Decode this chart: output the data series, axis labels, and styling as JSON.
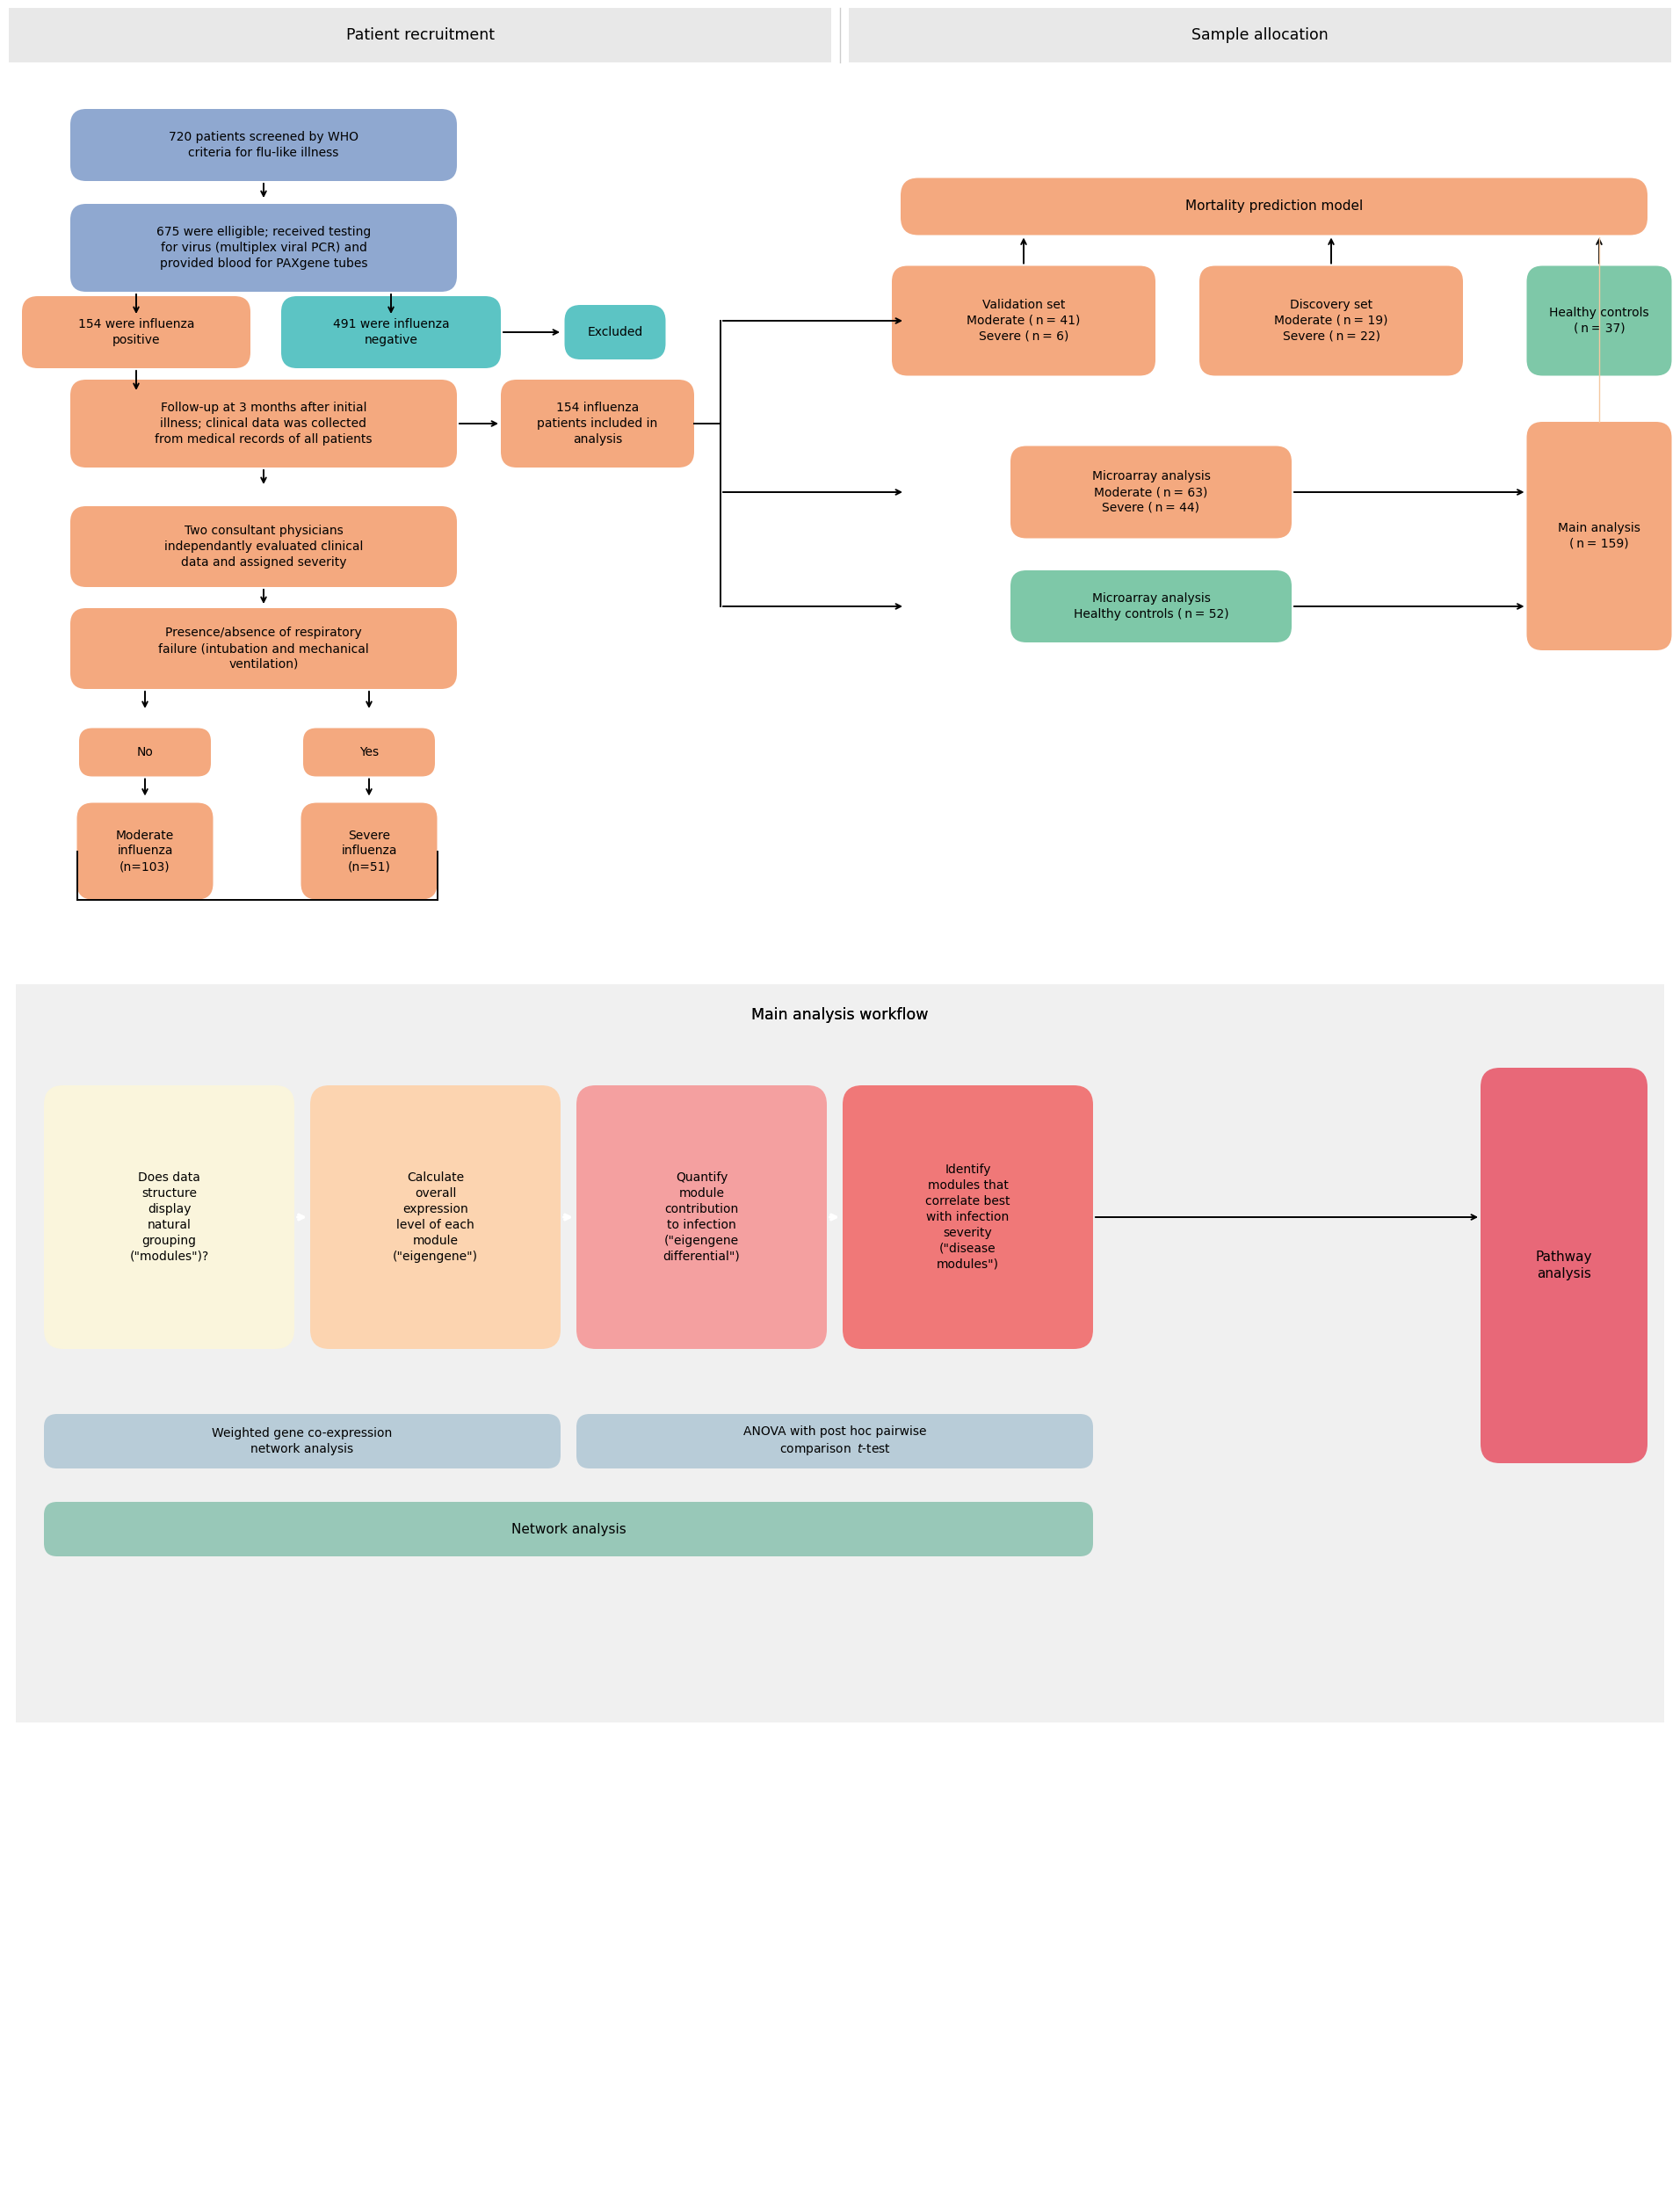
{
  "fig_width": 19.12,
  "fig_height": 25.0,
  "colors": {
    "blue_box": "#9aace8",
    "blue_box2": "#8fa8d0",
    "salmon_box": "#f4a97f",
    "teal_box": "#5cc4c4",
    "green_box": "#7ec8a8",
    "yellow_box": "#faf5dc",
    "peach_light": "#fcd4b0",
    "pink_mid": "#f4a0a0",
    "pink_dark": "#f07878",
    "pathway_pink": "#e86878",
    "header_bg": "#e8e8e8",
    "workflow_bg": "#f0f0f0",
    "bar_blue": "#b8ccd8",
    "bar_green": "#98c8b8",
    "main_analysis_col": "#f4a97f"
  },
  "section1_title": "Patient recruitment",
  "section2_title": "Sample allocation",
  "section3_title": "Main analysis workflow"
}
